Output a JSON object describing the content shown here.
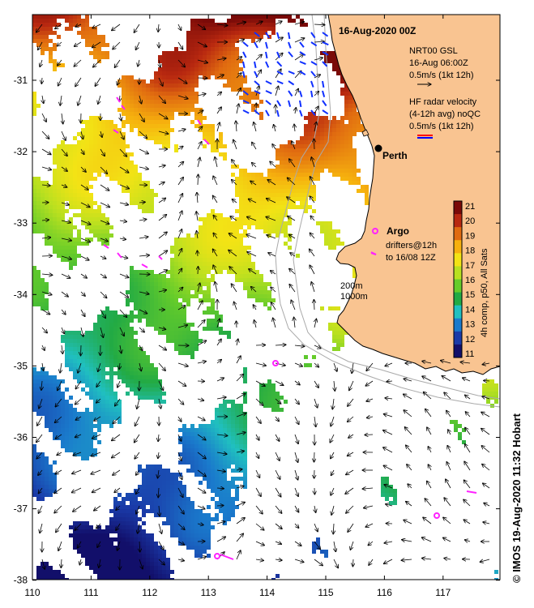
{
  "map": {
    "title": "16-Aug-2020 00Z",
    "city_label": "Perth",
    "bathymetry_labels": [
      "200m",
      "1000m"
    ],
    "x_ticks": [
      "110",
      "111",
      "112",
      "113",
      "114",
      "115",
      "116",
      "117"
    ],
    "y_ticks": [
      "-31",
      "-32",
      "-33",
      "-34",
      "-35",
      "-36",
      "-37",
      "-38"
    ],
    "colors": {
      "land": "#f9c491",
      "coast": "#000000",
      "isobath": "#aaaaaa",
      "drifter": "#ff22ff",
      "radar_red": "#ff0000",
      "radar_blue": "#0000ff"
    }
  },
  "legend": {
    "gsl_lines": [
      "NRT00 GSL",
      "16-Aug 06:00Z",
      "0.5m/s (1kt 12h)"
    ],
    "radar_lines": [
      "HF radar velocity",
      "(4-12h avg) noQC",
      "0.5m/s (1kt 12h)"
    ],
    "argo_label": "Argo",
    "drifter_lines": [
      "drifters@12h",
      "to 16/08 12Z"
    ]
  },
  "colorbar": {
    "ticks": [
      "21",
      "20",
      "19",
      "18",
      "17",
      "16",
      "15",
      "14",
      "13",
      "12",
      "11"
    ],
    "label": "4h comp, p50, All Sats"
  },
  "credit": "© IMOS 19-Aug-2020 11:32 Hobart"
}
